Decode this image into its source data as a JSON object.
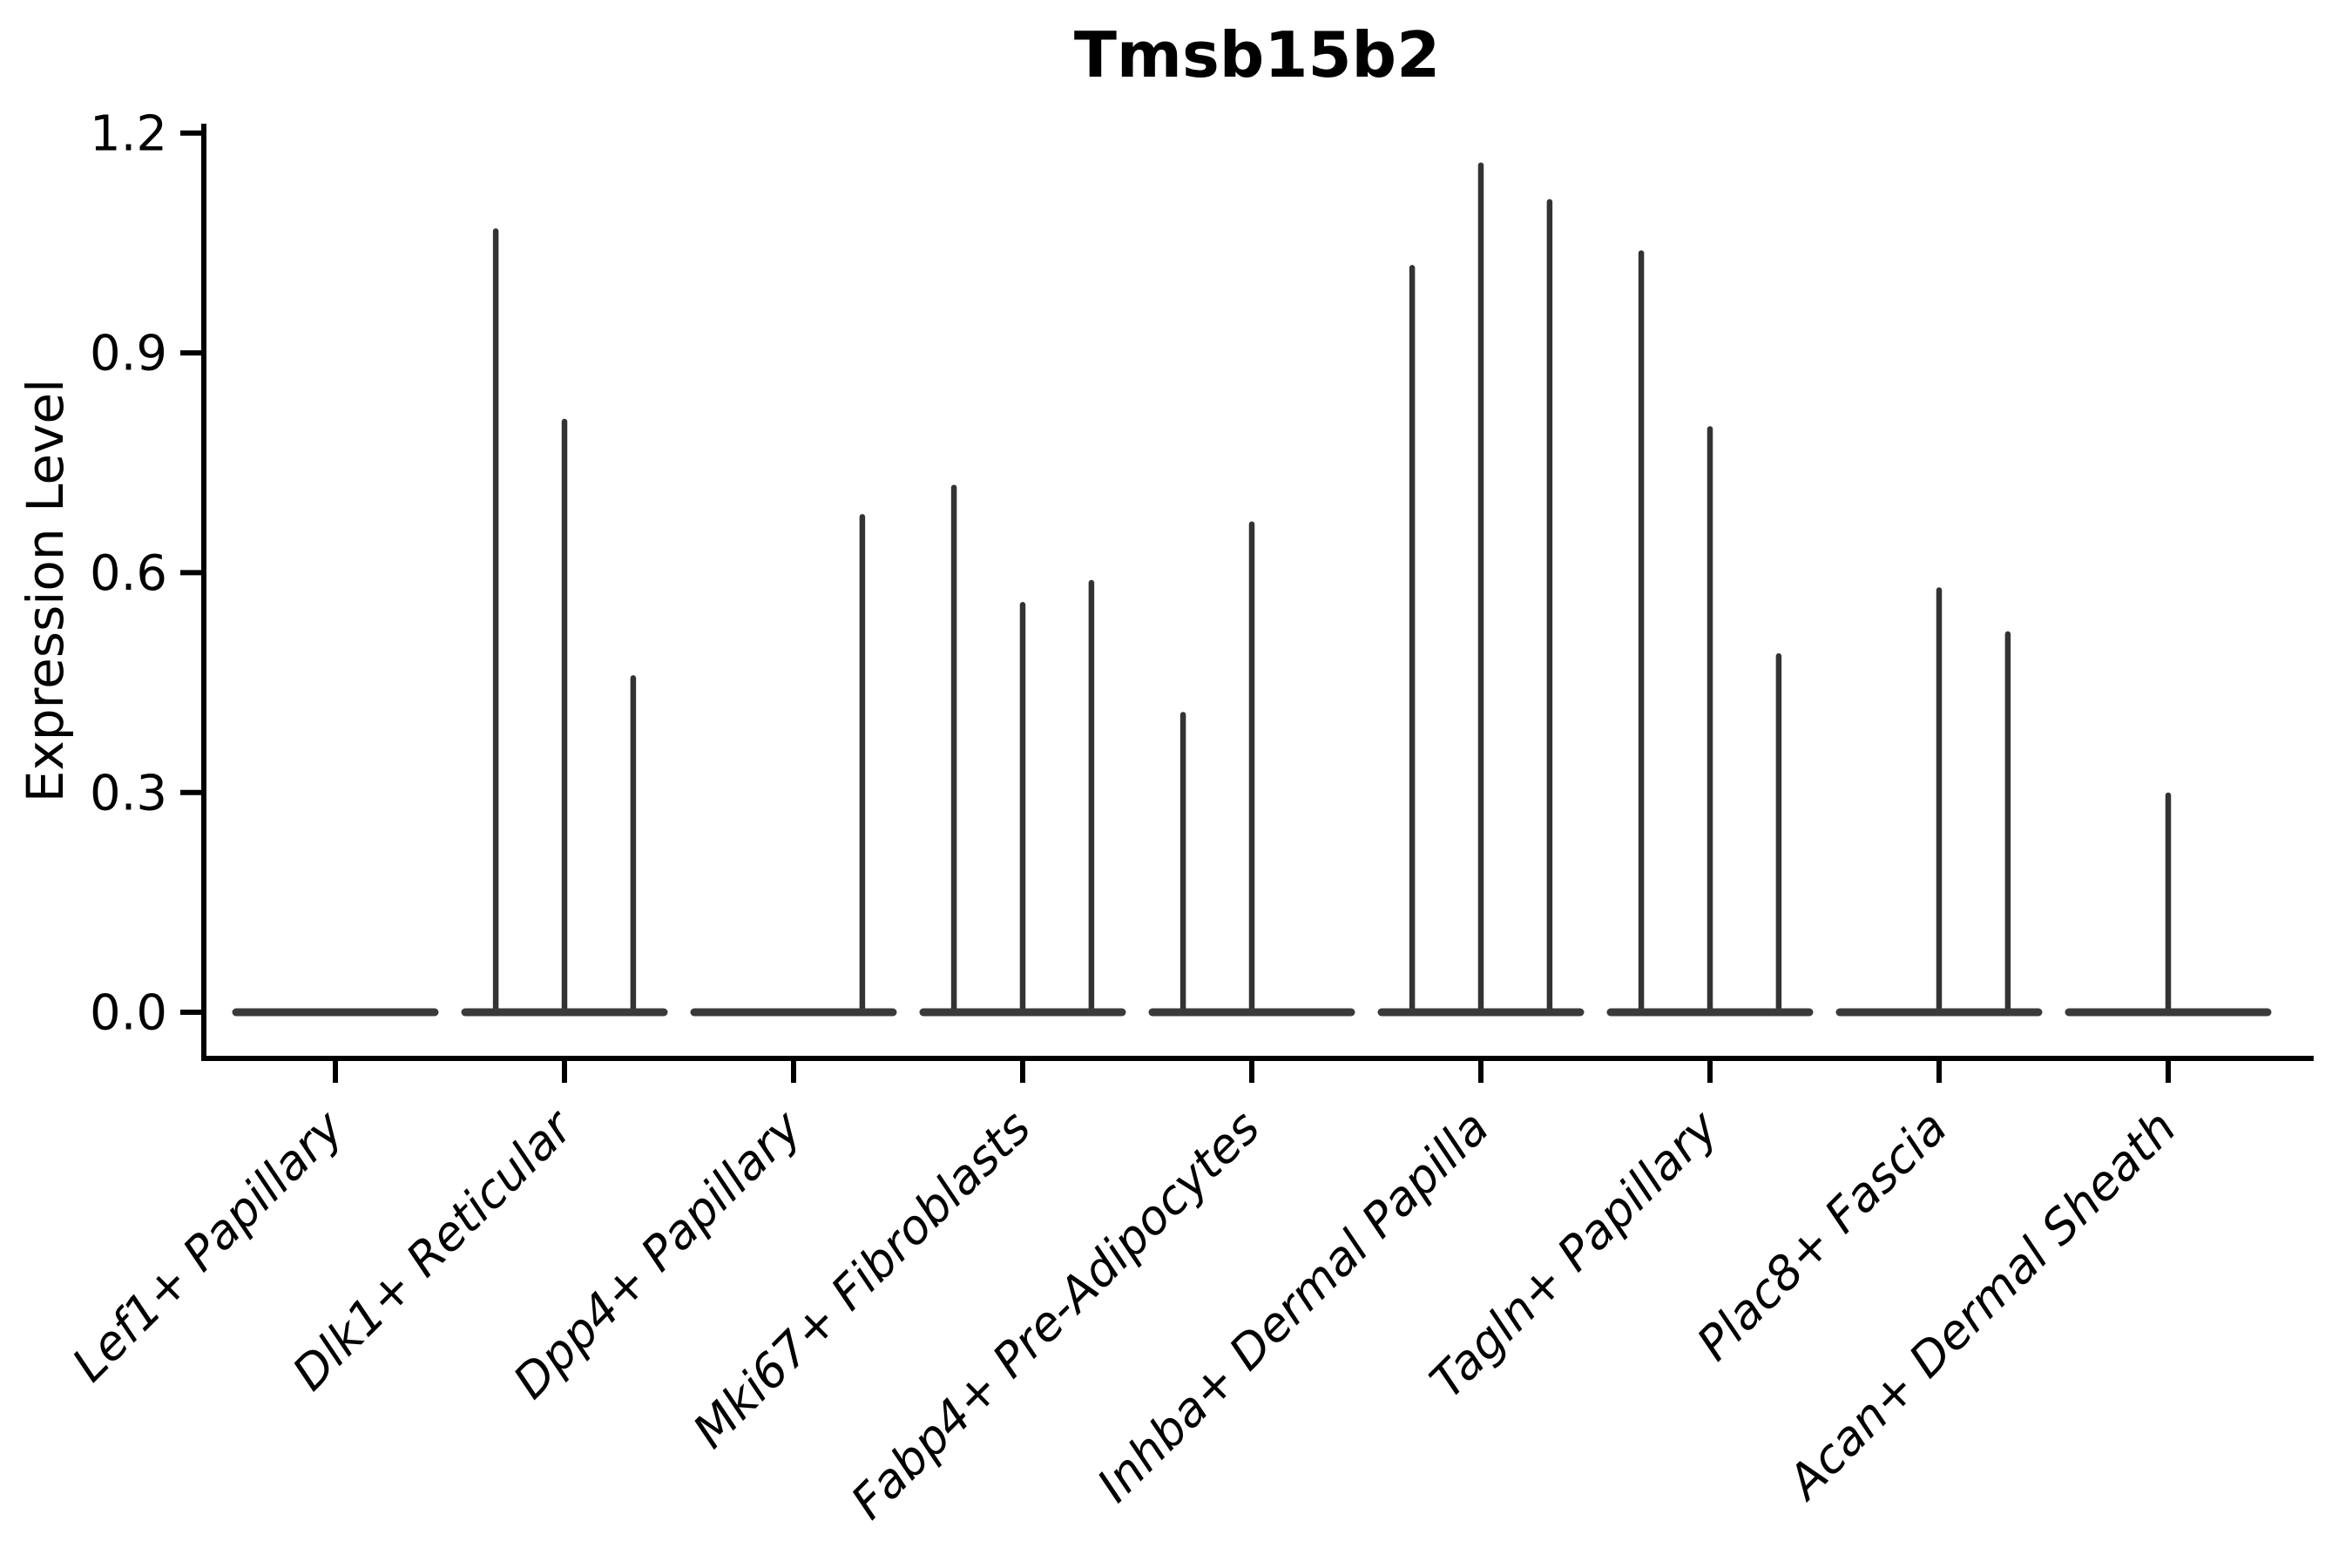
{
  "chart_data": {
    "type": "violin",
    "title": "Tmsb15b2",
    "xlabel": "",
    "ylabel": "Expression Level",
    "yticks": [
      "0.0",
      "0.3",
      "0.6",
      "0.9",
      "1.2"
    ],
    "ylim": [
      -0.06,
      1.21
    ],
    "categories": [
      "Lef1+ Papillary",
      "Dlk1+ Reticular",
      "Dpp4+ Papillary",
      "Mki67+ Fibroblasts",
      "Fabp4+ Pre-Adipocytes",
      "Inhba+ Dermal Papilla",
      "Tagln+ Papillary",
      "Plac8+ Fascia",
      "Acan+ Dermal Sheath"
    ],
    "subviolin_offsets": [
      -0.3,
      0,
      0.3
    ],
    "series": [
      {
        "category": "Lef1+ Papillary",
        "spike_max_expression": [
          0,
          0,
          0
        ]
      },
      {
        "category": "Dlk1+ Reticular",
        "spike_max_expression": [
          1.07,
          0.81,
          0.46
        ]
      },
      {
        "category": "Dpp4+ Papillary",
        "spike_max_expression": [
          0,
          0,
          0.68
        ]
      },
      {
        "category": "Mki67+ Fibroblasts",
        "spike_max_expression": [
          0.72,
          0.56,
          0.59
        ]
      },
      {
        "category": "Fabp4+ Pre-Adipocytes",
        "spike_max_expression": [
          0.41,
          0.67,
          0
        ]
      },
      {
        "category": "Inhba+ Dermal Papilla",
        "spike_max_expression": [
          1.02,
          1.16,
          1.11
        ]
      },
      {
        "category": "Tagln+ Papillary",
        "spike_max_expression": [
          1.04,
          0.8,
          0.49
        ]
      },
      {
        "category": "Plac8+ Fascia",
        "spike_max_expression": [
          0,
          0.58,
          0.52
        ]
      },
      {
        "category": "Acan+ Dermal Sheath",
        "spike_max_expression": [
          0,
          0.3,
          0
        ]
      }
    ],
    "layout": {
      "grid": false,
      "legend": false,
      "x_tick_rotation": 45
    },
    "colors": {
      "violin": "#333333",
      "violin_baseline": "#3a3a3a",
      "axis": "#000000",
      "text": "#000000",
      "background": "#ffffff"
    }
  }
}
